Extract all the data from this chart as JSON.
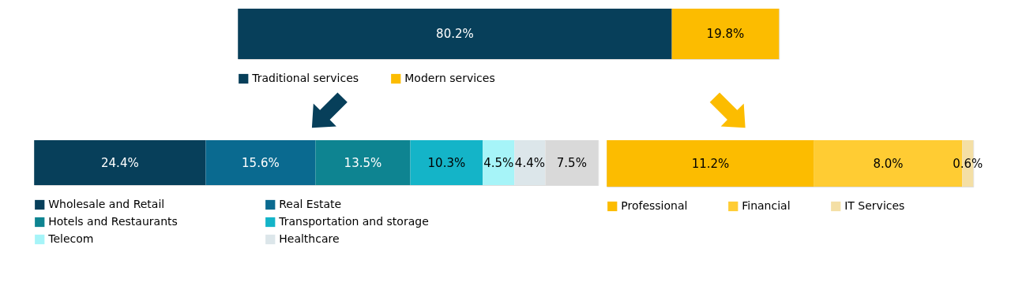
{
  "chart_data": [
    {
      "type": "bar",
      "orientation": "horizontal",
      "stacked": true,
      "categories": [
        null
      ],
      "legend": "bottom",
      "series": [
        {
          "name": "Traditional services",
          "color": "#073f5a",
          "values": [
            80.2
          ],
          "value_labels": [
            "80.2%"
          ]
        },
        {
          "name": "Modern services",
          "color": "#fcbc00",
          "values": [
            19.8
          ],
          "value_labels": [
            "19.8%"
          ]
        }
      ]
    },
    {
      "type": "bar",
      "orientation": "horizontal",
      "stacked": true,
      "categories": [
        null
      ],
      "legend": "bottom",
      "series": [
        {
          "name": "Wholesale and Retail",
          "color": "#073f5a",
          "values": [
            24.4
          ],
          "value_labels": [
            "24.4%"
          ]
        },
        {
          "name": "Real Estate",
          "color": "#0a6a90",
          "values": [
            15.6
          ],
          "value_labels": [
            "15.6%"
          ]
        },
        {
          "name": "Hotels and Restaurants",
          "color": "#0e8491",
          "values": [
            13.5
          ],
          "value_labels": [
            "13.5%"
          ]
        },
        {
          "name": "Transportation and storage",
          "color": "#14b4c8",
          "values": [
            10.3
          ],
          "value_labels": [
            "10.3%"
          ]
        },
        {
          "name": "Telecom",
          "color": "#a6f4f8",
          "values": [
            4.5
          ],
          "value_labels": [
            "4.5%"
          ]
        },
        {
          "name": "Healthcare",
          "color": "#dce6ea",
          "values": [
            4.4
          ],
          "value_labels": [
            "4.4%"
          ]
        },
        {
          "color": "#d9d9d9",
          "values": [
            7.5
          ],
          "value_labels": [
            "7.5%"
          ]
        }
      ]
    },
    {
      "type": "bar",
      "orientation": "horizontal",
      "stacked": true,
      "categories": [
        null
      ],
      "legend": "bottom",
      "series": [
        {
          "name": "Professional",
          "color": "#fcbc00",
          "values": [
            11.2
          ],
          "value_labels": [
            "11.2%"
          ]
        },
        {
          "name": "Financial",
          "color": "#ffcc33",
          "values": [
            8.0
          ],
          "value_labels": [
            "8.0%"
          ]
        },
        {
          "name": "IT Services",
          "color": "#f4dfa5",
          "values": [
            0.6
          ],
          "value_labels": [
            "0.6%"
          ]
        }
      ]
    }
  ]
}
